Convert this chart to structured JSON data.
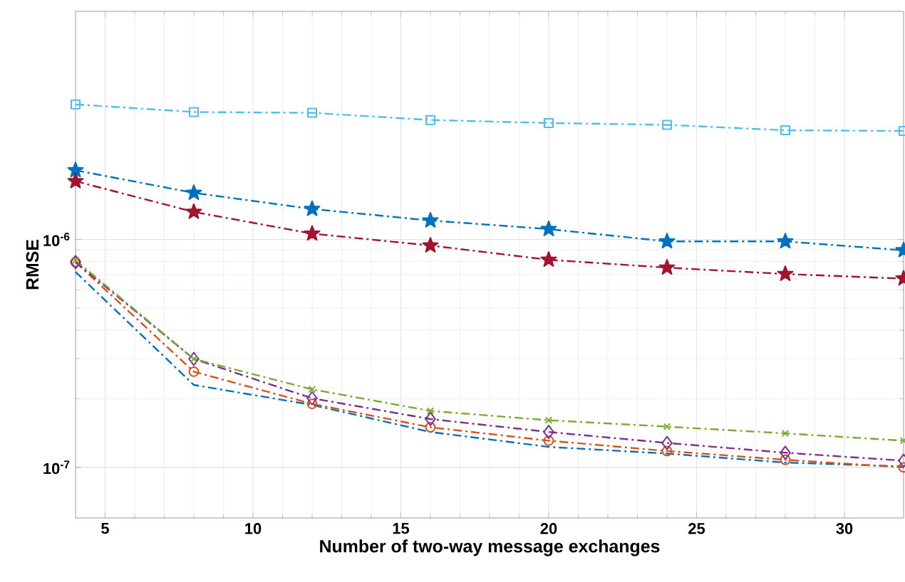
{
  "chart_data": {
    "type": "line",
    "xlabel": "Number of two-way message exchanges",
    "ylabel": "RMSE",
    "x": [
      4,
      8,
      12,
      16,
      20,
      24,
      28,
      32
    ],
    "series": [
      {
        "color": "#4dbeee",
        "marker": "square",
        "values": [
          3.91e-06,
          3.62e-06,
          3.59e-06,
          3.34e-06,
          3.24e-06,
          3.18e-06,
          3.01e-06,
          2.99e-06
        ]
      },
      {
        "color": "#0072bd",
        "marker": "star",
        "values": [
          2.01e-06,
          1.6e-06,
          1.36e-06,
          1.21e-06,
          1.11e-06,
          9.8e-07,
          9.8e-07,
          8.96e-07
        ]
      },
      {
        "color": "#a2142f",
        "marker": "star",
        "values": [
          1.8e-06,
          1.32e-06,
          1.06e-06,
          9.4e-07,
          8.14e-07,
          7.52e-07,
          7.05e-07,
          6.73e-07
        ]
      },
      {
        "color": "#0072bd",
        "marker": "none",
        "values": [
          7.2e-07,
          2.3e-07,
          1.88e-07,
          1.43e-07,
          1.23e-07,
          1.15e-07,
          1.05e-07,
          1.01e-07
        ]
      },
      {
        "color": "#d95319",
        "marker": "circle",
        "values": [
          7.95e-07,
          2.63e-07,
          1.9e-07,
          1.5e-07,
          1.31e-07,
          1.18e-07,
          1.08e-07,
          1e-07
        ]
      },
      {
        "color": "#7e2f8e",
        "marker": "diamond",
        "values": [
          7.95e-07,
          2.99e-07,
          2.01e-07,
          1.63e-07,
          1.43e-07,
          1.28e-07,
          1.16e-07,
          1.07e-07
        ]
      },
      {
        "color": "#77ac30",
        "marker": "cross",
        "values": [
          8.1e-07,
          2.99e-07,
          2.2e-07,
          1.77e-07,
          1.61e-07,
          1.51e-07,
          1.41e-07,
          1.31e-07
        ]
      }
    ],
    "xlim": [
      4,
      32
    ],
    "ylim": [
      6e-08,
      1e-05
    ],
    "xticks": [
      5,
      10,
      15,
      20,
      25,
      30
    ],
    "yticks": [
      {
        "value": 1e-07,
        "label": "10$^{-7}$"
      },
      {
        "value": 1e-06,
        "label": "10$^{-6}$"
      }
    ],
    "log": "y",
    "grid": true,
    "line_style": "dashdot"
  }
}
